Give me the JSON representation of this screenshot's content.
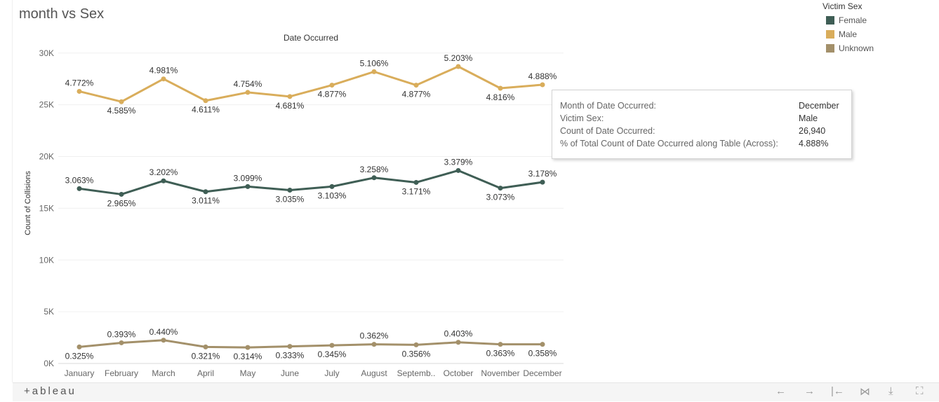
{
  "title": "month vs Sex",
  "legend": {
    "title": "Victim Sex",
    "items": [
      {
        "label": "Female",
        "color": "#3f5e55"
      },
      {
        "label": "Male",
        "color": "#d9ad5b"
      },
      {
        "label": "Unknown",
        "color": "#a3906a"
      }
    ]
  },
  "tooltip": {
    "rows": [
      {
        "key": "Month of Date Occurred:",
        "value": "December"
      },
      {
        "key": "Victim Sex:",
        "value": "Male"
      },
      {
        "key": "Count of Date Occurred:",
        "value": "26,940"
      },
      {
        "key": "% of Total Count of Date Occurred along Table (Across):",
        "value": "4.888%"
      }
    ]
  },
  "toolbar": {
    "logo": "+ableau",
    "buttons": [
      {
        "name": "undo-button",
        "icon": "undo-icon",
        "glyph": "←"
      },
      {
        "name": "redo-button",
        "icon": "redo-icon",
        "glyph": "→"
      },
      {
        "name": "revert-button",
        "icon": "revert-icon",
        "glyph": "|←"
      },
      {
        "name": "share-button",
        "icon": "share-icon",
        "glyph": "⋈"
      },
      {
        "name": "download-button",
        "icon": "download-icon",
        "glyph": "⤓"
      },
      {
        "name": "fullscreen-button",
        "icon": "fullscreen-icon",
        "glyph": "⛶"
      }
    ]
  },
  "chart_data": {
    "type": "line",
    "title": "Date Occurred",
    "xlabel": "",
    "ylabel": "Count of Collisions",
    "ylim": [
      0,
      31000
    ],
    "yticks": [
      0,
      5000,
      10000,
      15000,
      20000,
      25000,
      30000
    ],
    "ytick_labels": [
      "0K",
      "5K",
      "10K",
      "15K",
      "20K",
      "25K",
      "30K"
    ],
    "categories": [
      "January",
      "February",
      "March",
      "April",
      "May",
      "June",
      "July",
      "August",
      "Septemb..",
      "October",
      "November",
      "December"
    ],
    "label_positions": [
      "above",
      "below",
      "above",
      "below",
      "above",
      "below",
      "below",
      "above",
      "below",
      "above",
      "below",
      "above"
    ],
    "series": [
      {
        "name": "Male",
        "color": "#d9ad5b",
        "values": [
          26300,
          25300,
          27500,
          25400,
          26200,
          25800,
          26900,
          28200,
          26900,
          28700,
          26600,
          26940
        ],
        "labels": [
          "4.772%",
          "4.585%",
          "4.981%",
          "4.611%",
          "4.754%",
          "4.681%",
          "4.877%",
          "5.106%",
          "4.877%",
          "5.203%",
          "4.816%",
          "4.888%"
        ]
      },
      {
        "name": "Female",
        "color": "#3f5e55",
        "values": [
          16900,
          16350,
          17650,
          16600,
          17100,
          16750,
          17100,
          17950,
          17500,
          18650,
          16950,
          17520
        ],
        "labels": [
          "3.063%",
          "2.965%",
          "3.202%",
          "3.011%",
          "3.099%",
          "3.035%",
          "3.103%",
          "3.258%",
          "3.171%",
          "3.379%",
          "3.073%",
          "3.178%"
        ]
      },
      {
        "name": "Unknown",
        "color": "#a3906a",
        "values": [
          1600,
          2000,
          2250,
          1600,
          1550,
          1650,
          1750,
          1850,
          1800,
          2050,
          1850,
          1850
        ],
        "labels": [
          "0.325%",
          "0.393%",
          "0.440%",
          "0.321%",
          "0.314%",
          "0.333%",
          "0.345%",
          "0.362%",
          "0.356%",
          "0.403%",
          "0.363%",
          "0.358%"
        ],
        "label_positions": [
          "below",
          "above",
          "above",
          "below",
          "below",
          "below",
          "below",
          "above",
          "below",
          "above",
          "below",
          "below"
        ]
      }
    ]
  }
}
